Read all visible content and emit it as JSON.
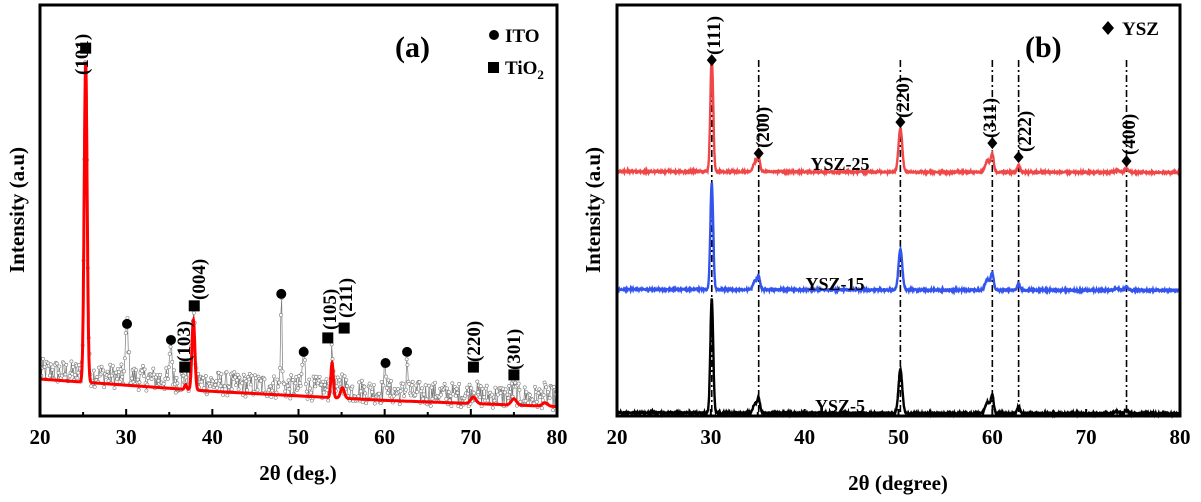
{
  "chart_data": [
    {
      "type": "line",
      "panel_label": "(a)",
      "xlabel": "2θ (deg.)",
      "ylabel": "Intensity (a.u)",
      "xlim": [
        20,
        80
      ],
      "ylim": [
        0,
        100
      ],
      "xticks": [
        "20",
        "30",
        "40",
        "50",
        "60",
        "70",
        "80"
      ],
      "grid": false,
      "legend_position": "top-right",
      "legend": [
        {
          "marker": "circle",
          "label": "ITO"
        },
        {
          "marker": "square",
          "label": "TiO",
          "subscript": "2"
        }
      ],
      "fit_color": "#ff0000",
      "raw_color": "#7a7a7a",
      "baseline": {
        "x": [
          20,
          40,
          60,
          80
        ],
        "y": [
          9,
          6,
          3.8,
          2.3
        ]
      },
      "fit_peaks": [
        {
          "x": 25.3,
          "height": 78,
          "width": 0.17
        },
        {
          "x": 36.9,
          "height": 1.2,
          "width": 0.12
        },
        {
          "x": 37.8,
          "height": 17,
          "width": 0.17
        },
        {
          "x": 53.9,
          "height": 8.5,
          "width": 0.14
        },
        {
          "x": 55.1,
          "height": 2.5,
          "width": 0.22
        },
        {
          "x": 70.3,
          "height": 1.6,
          "width": 0.3
        },
        {
          "x": 75.0,
          "height": 1.5,
          "width": 0.3
        },
        {
          "x": 78.6,
          "height": 0.8,
          "width": 0.3
        }
      ],
      "raw_extra_peaks": [
        {
          "x": 30.1,
          "height": 14,
          "width": 0.15
        },
        {
          "x": 35.2,
          "height": 10,
          "width": 0.12
        },
        {
          "x": 48.0,
          "height": 24,
          "width": 0.08
        },
        {
          "x": 50.6,
          "height": 9,
          "width": 0.15
        },
        {
          "x": 60.1,
          "height": 6,
          "width": 0.15
        },
        {
          "x": 62.6,
          "height": 9,
          "width": 0.1
        }
      ],
      "ito_markers": [
        {
          "x": 30.1,
          "y": 22.4
        },
        {
          "x": 35.2,
          "y": 18.5
        },
        {
          "x": 48.0,
          "y": 29.7
        },
        {
          "x": 50.6,
          "y": 15.6
        },
        {
          "x": 60.1,
          "y": 12.9
        },
        {
          "x": 62.6,
          "y": 15.6
        }
      ],
      "tio2_markers": [
        {
          "x": 25.3,
          "y": 89.5,
          "hkl": "(101)"
        },
        {
          "x": 36.8,
          "y": 11.9,
          "hkl": "(103)"
        },
        {
          "x": 37.9,
          "y": 26.8,
          "hkl": "(004)"
        },
        {
          "x": 53.4,
          "y": 19.0,
          "hkl": "(105)"
        },
        {
          "x": 55.3,
          "y": 21.4,
          "hkl": "(211)"
        },
        {
          "x": 70.3,
          "y": 11.9,
          "hkl": "(220)"
        },
        {
          "x": 75.0,
          "y": 10.0,
          "hkl": "(301)"
        }
      ]
    },
    {
      "type": "line",
      "panel_label": "(b)",
      "xlabel": "2θ (degree)",
      "ylabel": "Intensity (a.u)",
      "xlim": [
        20,
        80
      ],
      "ylim": [
        0,
        100
      ],
      "xticks": [
        "20",
        "30",
        "40",
        "50",
        "60",
        "70",
        "80"
      ],
      "grid": false,
      "legend_position": "top-right",
      "legend": [
        {
          "marker": "diamond",
          "label": "YSZ"
        }
      ],
      "peaks": [
        {
          "x": 30.1,
          "rel": 1.0,
          "width": 0.15,
          "hkl": "(111)"
        },
        {
          "x": 34.7,
          "rel": 0.08,
          "width": 0.2,
          "hkl": ""
        },
        {
          "x": 35.1,
          "rel": 0.12,
          "width": 0.15,
          "hkl": "(200)"
        },
        {
          "x": 50.2,
          "rel": 0.38,
          "width": 0.2,
          "hkl": "(220)"
        },
        {
          "x": 59.5,
          "rel": 0.1,
          "width": 0.25,
          "hkl": ""
        },
        {
          "x": 60.0,
          "rel": 0.15,
          "width": 0.15,
          "hkl": "(311)"
        },
        {
          "x": 62.8,
          "rel": 0.06,
          "width": 0.15,
          "hkl": "(222)"
        },
        {
          "x": 73.3,
          "rel": 0.015,
          "width": 0.3,
          "hkl": ""
        },
        {
          "x": 74.3,
          "rel": 0.03,
          "width": 0.2,
          "hkl": "(400)"
        }
      ],
      "reference_lines": [
        30.1,
        35.1,
        50.2,
        60.0,
        62.8,
        74.3
      ],
      "diamond_markers": [
        {
          "x": 30.1,
          "y": 86.6
        },
        {
          "x": 35.1,
          "y": 63.9
        },
        {
          "x": 50.2,
          "y": 71.5
        },
        {
          "x": 60.0,
          "y": 66.4
        },
        {
          "x": 62.8,
          "y": 63.0
        },
        {
          "x": 74.3,
          "y": 62.0
        }
      ],
      "series": [
        {
          "name": "YSZ-5",
          "color": "#000000",
          "offset": 0.8,
          "scale": 28
        },
        {
          "name": "YSZ-15",
          "color": "#3355ee",
          "offset": 30.8,
          "scale": 26
        },
        {
          "name": "YSZ-25",
          "color": "#f04848",
          "offset": 59.5,
          "scale": 28
        }
      ]
    }
  ]
}
